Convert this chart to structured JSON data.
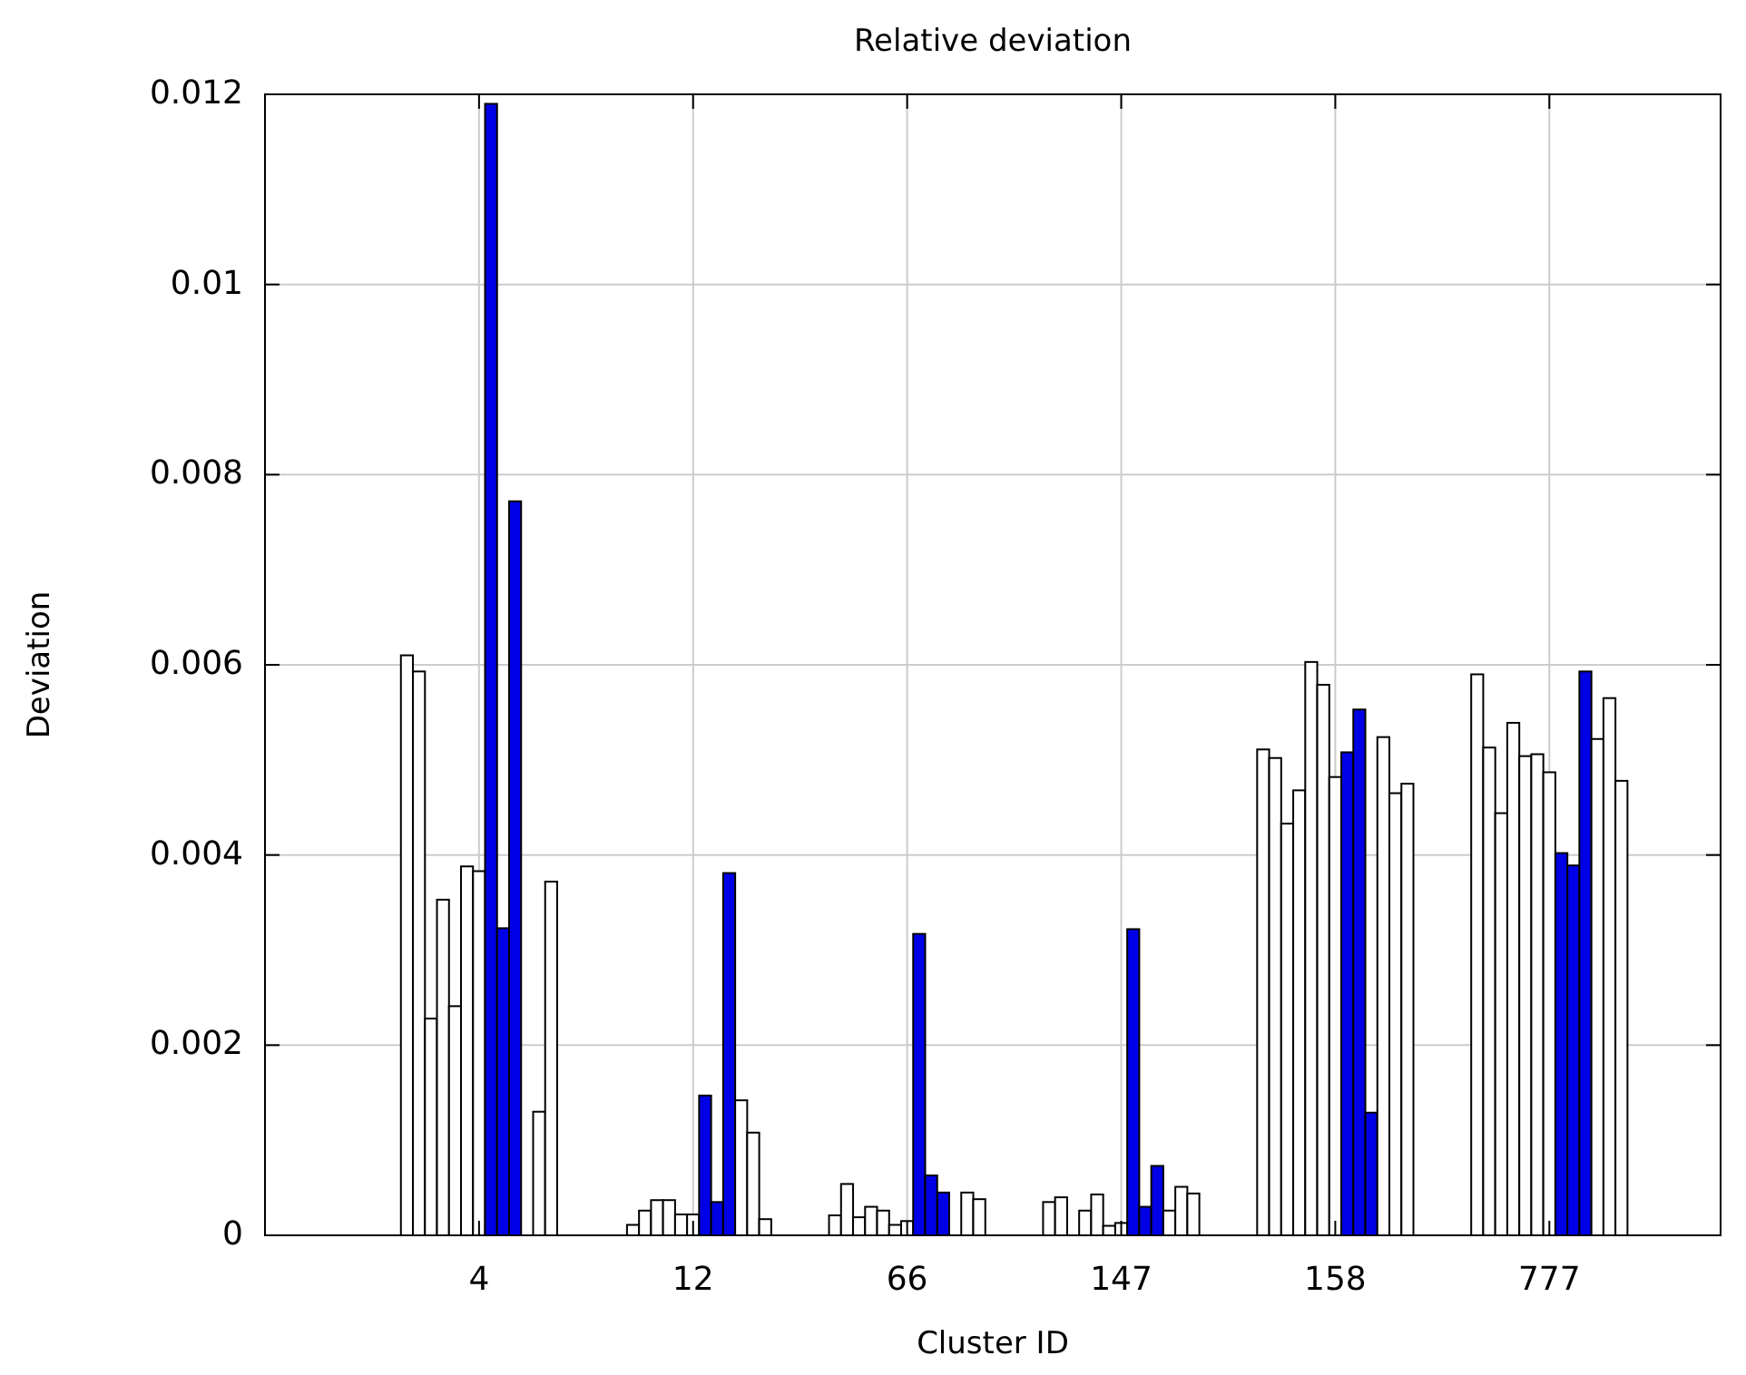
{
  "chart_data": {
    "type": "bar",
    "title": "Relative deviation",
    "xlabel": "Cluster ID",
    "ylabel": "Deviation",
    "categories": [
      "4",
      "12",
      "66",
      "147",
      "158",
      "777"
    ],
    "series": [
      {
        "color": "#ffffff",
        "values": [
          0.0061,
          0,
          0.00021,
          0.00035,
          0.00511,
          0.0059
        ]
      },
      {
        "color": "#ffffff",
        "values": [
          0.00593,
          0.00011,
          0.00054,
          0.0004,
          0.00502,
          0.00513
        ]
      },
      {
        "color": "#ffffff",
        "values": [
          0.00228,
          0.00026,
          0.00019,
          0,
          0.00433,
          0.00444
        ]
      },
      {
        "color": "#ffffff",
        "values": [
          0.00353,
          0.00037,
          0.0003,
          0.00026,
          0.00468,
          0.00539
        ]
      },
      {
        "color": "#ffffff",
        "values": [
          0.00241,
          0.00037,
          0.00026,
          0.00043,
          0.00603,
          0.00504
        ]
      },
      {
        "color": "#ffffff",
        "values": [
          0.00388,
          0.00022,
          0.00011,
          0.0001,
          0.00579,
          0.00506
        ]
      },
      {
        "color": "#ffffff",
        "values": [
          0.00383,
          0.00022,
          0.00015,
          0.00013,
          0.00482,
          0.00487
        ]
      },
      {
        "color": "#0000e6",
        "values": [
          0.0119,
          0.00147,
          0.00317,
          0.00322,
          0.00508,
          0.00402
        ]
      },
      {
        "color": "#0000e6",
        "values": [
          0.00323,
          0.00035,
          0.00063,
          0.0003,
          0.00553,
          0.00389
        ]
      },
      {
        "color": "#0000e6",
        "values": [
          0.00772,
          0.00381,
          0.00045,
          0.00073,
          0.00129,
          0.00593
        ]
      },
      {
        "color": "#ffffff",
        "values": [
          0,
          0.00142,
          0,
          0.00026,
          0.00524,
          0.00522
        ]
      },
      {
        "color": "#ffffff",
        "values": [
          0.0013,
          0.00108,
          0.00045,
          0.00051,
          0.00465,
          0.00565
        ]
      },
      {
        "color": "#ffffff",
        "values": [
          0.00372,
          0.00017,
          0.00038,
          0.00044,
          0.00475,
          0.00478
        ]
      }
    ],
    "ylim": [
      0,
      0.012
    ],
    "yticks": [
      0,
      0.002,
      0.004,
      0.006,
      0.008,
      0.01,
      0.012
    ],
    "grid": true
  }
}
